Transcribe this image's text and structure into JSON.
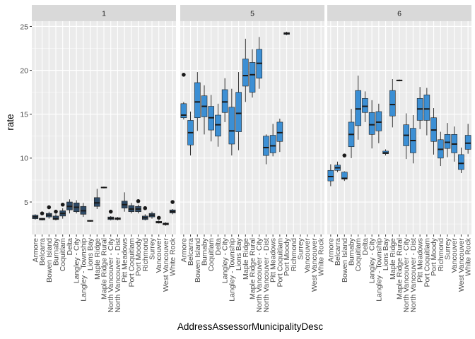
{
  "chart_data": {
    "type": "boxplot",
    "facet_by": "strip",
    "xlabel": "AddressAssessorMunicipalityDesc",
    "ylabel": "rate",
    "ylim": [
      1.3,
      25.6
    ],
    "y_ticks": [
      5,
      10,
      15,
      20,
      25
    ],
    "grid": true,
    "colors": {
      "panel_bg": "#ebebeb",
      "grid_major": "#ffffff",
      "strip_bg": "#d9d9d9",
      "tick_color": "#333333",
      "outlier": "#1a1a1a",
      "median": "#1a1a1a",
      "whisker": "#1a1a1a",
      "box_border": "#1f1f1f"
    },
    "categories": [
      "Armore",
      "Belcarra",
      "Bowen Island",
      "Burnaby",
      "Coquitlam",
      "Delta",
      "Langley - City",
      "Langley - Township",
      "Lions Bay",
      "Maple Ridge",
      "Maple Ridge Rural",
      "North Vancouver - City",
      "North Vancouver - Dist",
      "Pitt Meadows",
      "Port Coquitlam",
      "Port Moody",
      "Richmond",
      "Surrey",
      "Vancouver",
      "West Vancouver",
      "White Rock"
    ],
    "panels": [
      {
        "strip": "1",
        "box_fill": "#2e4a66",
        "boxes": [
          {
            "x": "Armore",
            "min": 3.0,
            "q1": 3.1,
            "median": 3.3,
            "q3": 3.5,
            "max": 3.6,
            "outliers": []
          },
          {
            "x": "Belcarra",
            "min": 2.9,
            "q1": 2.95,
            "median": 3.05,
            "q3": 3.15,
            "max": 3.2,
            "outliers": [
              3.7
            ]
          },
          {
            "x": "Bowen Island",
            "min": 3.1,
            "q1": 3.3,
            "median": 3.5,
            "q3": 3.7,
            "max": 3.9,
            "outliers": [
              4.4
            ]
          },
          {
            "x": "Burnaby",
            "min": 2.9,
            "q1": 3.0,
            "median": 3.1,
            "q3": 3.4,
            "max": 3.6,
            "outliers": [
              3.9
            ]
          },
          {
            "x": "Coquitlam",
            "min": 3.1,
            "q1": 3.4,
            "median": 3.7,
            "q3": 4.0,
            "max": 4.3,
            "outliers": [
              4.7
            ]
          },
          {
            "x": "Delta",
            "min": 3.7,
            "q1": 4.1,
            "median": 4.5,
            "q3": 5.0,
            "max": 5.3,
            "outliers": []
          },
          {
            "x": "Langley - City",
            "min": 3.7,
            "q1": 3.9,
            "median": 4.4,
            "q3": 4.9,
            "max": 5.2,
            "outliers": []
          },
          {
            "x": "Langley - Township",
            "min": 3.3,
            "q1": 3.6,
            "median": 4.0,
            "q3": 4.5,
            "max": 4.9,
            "outliers": []
          },
          {
            "x": "Lions Bay",
            "min": 2.75,
            "q1": 2.8,
            "median": 2.85,
            "q3": 2.9,
            "max": 2.95,
            "outliers": []
          },
          {
            "x": "Maple Ridge",
            "min": 4.2,
            "q1": 4.5,
            "median": 4.9,
            "q3": 5.5,
            "max": 6.5,
            "outliers": []
          },
          {
            "x": "Maple Ridge Rural",
            "min": 6.55,
            "q1": 6.6,
            "median": 6.65,
            "q3": 6.7,
            "max": 6.75,
            "outliers": []
          },
          {
            "x": "North Vancouver - City",
            "min": 2.9,
            "q1": 3.0,
            "median": 3.15,
            "q3": 3.3,
            "max": 3.4,
            "outliers": [
              3.9
            ]
          },
          {
            "x": "North Vancouver - Dist",
            "min": 2.9,
            "q1": 3.0,
            "median": 3.1,
            "q3": 3.2,
            "max": 3.3,
            "outliers": []
          },
          {
            "x": "Pitt Meadows",
            "min": 3.9,
            "q1": 4.3,
            "median": 4.7,
            "q3": 5.1,
            "max": 6.1,
            "outliers": []
          },
          {
            "x": "Port Coquitlam",
            "min": 3.7,
            "q1": 3.9,
            "median": 4.2,
            "q3": 4.6,
            "max": 4.9,
            "outliers": []
          },
          {
            "x": "Port Moody",
            "min": 3.7,
            "q1": 3.9,
            "median": 4.2,
            "q3": 4.5,
            "max": 4.7,
            "outliers": [
              5.1
            ]
          },
          {
            "x": "Richmond",
            "min": 2.9,
            "q1": 3.0,
            "median": 3.2,
            "q3": 3.4,
            "max": 3.6,
            "outliers": [
              4.3
            ]
          },
          {
            "x": "Surrey",
            "min": 3.1,
            "q1": 3.3,
            "median": 3.5,
            "q3": 3.7,
            "max": 3.9,
            "outliers": []
          },
          {
            "x": "Vancouver",
            "min": 2.55,
            "q1": 2.6,
            "median": 2.7,
            "q3": 2.8,
            "max": 2.9,
            "outliers": [
              3.2
            ]
          },
          {
            "x": "West Vancouver",
            "min": 2.3,
            "q1": 2.4,
            "median": 2.5,
            "q3": 2.6,
            "max": 2.7,
            "outliers": []
          },
          {
            "x": "White Rock",
            "min": 3.6,
            "q1": 3.75,
            "median": 3.9,
            "q3": 4.1,
            "max": 4.2,
            "outliers": [
              5.0
            ]
          }
        ]
      },
      {
        "strip": "5",
        "box_fill": "#3c8fd4",
        "boxes": [
          {
            "x": "Armore",
            "min": 14.4,
            "q1": 14.6,
            "median": 14.9,
            "q3": 16.2,
            "max": 16.4,
            "outliers": [
              19.5
            ]
          },
          {
            "x": "Belcarra",
            "min": 10.3,
            "q1": 11.5,
            "median": 12.9,
            "q3": 14.3,
            "max": 15.3,
            "outliers": []
          },
          {
            "x": "Bowen Island",
            "min": 13.1,
            "q1": 14.6,
            "median": 16.4,
            "q3": 18.6,
            "max": 19.8,
            "outliers": []
          },
          {
            "x": "Burnaby",
            "min": 12.7,
            "q1": 14.7,
            "median": 15.9,
            "q3": 17.1,
            "max": 18.3,
            "outliers": []
          },
          {
            "x": "Coquitlam",
            "min": 11.9,
            "q1": 13.2,
            "median": 14.6,
            "q3": 15.9,
            "max": 17.2,
            "outliers": []
          },
          {
            "x": "Delta",
            "min": 11.3,
            "q1": 12.5,
            "median": 13.8,
            "q3": 14.9,
            "max": 16.2,
            "outliers": []
          },
          {
            "x": "Langley - City",
            "min": 14.1,
            "q1": 15.2,
            "median": 16.4,
            "q3": 17.8,
            "max": 19.1,
            "outliers": []
          },
          {
            "x": "Langley - Township",
            "min": 10.3,
            "q1": 11.6,
            "median": 13.1,
            "q3": 15.8,
            "max": 17.9,
            "outliers": []
          },
          {
            "x": "Lions Bay",
            "min": 10.9,
            "q1": 13.0,
            "median": 15.1,
            "q3": 17.5,
            "max": 19.8,
            "outliers": []
          },
          {
            "x": "Maple Ridge",
            "min": 16.4,
            "q1": 18.2,
            "median": 19.4,
            "q3": 21.3,
            "max": 23.6,
            "outliers": []
          },
          {
            "x": "Maple Ridge Rural",
            "min": 16.9,
            "q1": 17.5,
            "median": 19.5,
            "q3": 20.9,
            "max": 22.4,
            "outliers": []
          },
          {
            "x": "North Vancouver - City",
            "min": 17.9,
            "q1": 19.1,
            "median": 20.8,
            "q3": 22.4,
            "max": 23.8,
            "outliers": []
          },
          {
            "x": "North Vancouver - Dist",
            "min": 9.3,
            "q1": 10.3,
            "median": 11.2,
            "q3": 12.5,
            "max": 12.7,
            "outliers": []
          },
          {
            "x": "Pitt Meadows",
            "min": 10.2,
            "q1": 10.6,
            "median": 11.4,
            "q3": 12.6,
            "max": 13.9,
            "outliers": []
          },
          {
            "x": "Port Coquitlam",
            "min": 10.7,
            "q1": 11.9,
            "median": 12.9,
            "q3": 14.1,
            "max": 14.5,
            "outliers": []
          },
          {
            "x": "Port Moody",
            "min": 24.0,
            "q1": 24.1,
            "median": 24.2,
            "q3": 24.3,
            "max": 24.4,
            "outliers": []
          }
        ]
      },
      {
        "strip": "6",
        "box_fill": "#3c8fd4",
        "boxes": [
          {
            "x": "Armore",
            "min": 6.8,
            "q1": 7.4,
            "median": 7.9,
            "q3": 8.6,
            "max": 9.3,
            "outliers": []
          },
          {
            "x": "Belcarra",
            "min": 8.4,
            "q1": 8.6,
            "median": 8.9,
            "q3": 9.2,
            "max": 9.6,
            "outliers": []
          },
          {
            "x": "Bowen Island",
            "min": 7.4,
            "q1": 7.6,
            "median": 7.7,
            "q3": 8.4,
            "max": 8.5,
            "outliers": [
              10.3
            ]
          },
          {
            "x": "Burnaby",
            "min": 10.0,
            "q1": 11.3,
            "median": 12.7,
            "q3": 14.1,
            "max": 15.6,
            "outliers": []
          },
          {
            "x": "Coquitlam",
            "min": 12.1,
            "q1": 13.7,
            "median": 15.6,
            "q3": 17.7,
            "max": 19.4,
            "outliers": []
          },
          {
            "x": "Delta",
            "min": 14.1,
            "q1": 15.2,
            "median": 15.9,
            "q3": 16.8,
            "max": 17.6,
            "outliers": []
          },
          {
            "x": "Langley - City",
            "min": 11.1,
            "q1": 12.7,
            "median": 13.8,
            "q3": 15.2,
            "max": 16.6,
            "outliers": []
          },
          {
            "x": "Langley - Township",
            "min": 11.7,
            "q1": 13.1,
            "median": 14.1,
            "q3": 15.3,
            "max": 16.2,
            "outliers": []
          },
          {
            "x": "Lions Bay",
            "min": 10.3,
            "q1": 10.5,
            "median": 10.6,
            "q3": 10.8,
            "max": 11.0,
            "outliers": []
          },
          {
            "x": "Maple Ridge",
            "min": 13.5,
            "q1": 14.8,
            "median": 16.1,
            "q3": 17.7,
            "max": 19.0,
            "outliers": []
          },
          {
            "x": "Maple Ridge Rural",
            "min": 18.75,
            "q1": 18.8,
            "median": 18.85,
            "q3": 18.9,
            "max": 18.95,
            "outliers": []
          },
          {
            "x": "North Vancouver - City",
            "min": 9.9,
            "q1": 11.4,
            "median": 12.6,
            "q3": 13.8,
            "max": 15.1,
            "outliers": []
          },
          {
            "x": "North Vancouver - Dist",
            "min": 9.4,
            "q1": 10.6,
            "median": 12.0,
            "q3": 13.4,
            "max": 14.9,
            "outliers": []
          },
          {
            "x": "Pitt Meadows",
            "min": 13.3,
            "q1": 14.3,
            "median": 15.6,
            "q3": 16.8,
            "max": 18.1,
            "outliers": []
          },
          {
            "x": "Port Coquitlam",
            "min": 12.6,
            "q1": 14.3,
            "median": 15.6,
            "q3": 17.2,
            "max": 18.0,
            "outliers": []
          },
          {
            "x": "Port Moody",
            "min": 10.4,
            "q1": 11.9,
            "median": 13.2,
            "q3": 14.6,
            "max": 15.7,
            "outliers": []
          },
          {
            "x": "Richmond",
            "min": 9.1,
            "q1": 10.0,
            "median": 11.0,
            "q3": 12.1,
            "max": 13.0,
            "outliers": []
          },
          {
            "x": "Surrey",
            "min": 10.1,
            "q1": 11.1,
            "median": 11.8,
            "q3": 12.7,
            "max": 14.0,
            "outliers": []
          },
          {
            "x": "Vancouver",
            "min": 9.6,
            "q1": 10.6,
            "median": 11.6,
            "q3": 12.7,
            "max": 13.6,
            "outliers": []
          },
          {
            "x": "West Vancouver",
            "min": 8.3,
            "q1": 8.7,
            "median": 9.4,
            "q3": 10.4,
            "max": 11.2,
            "outliers": []
          },
          {
            "x": "White Rock",
            "min": 10.5,
            "q1": 11.0,
            "median": 11.7,
            "q3": 12.6,
            "max": 13.9,
            "outliers": []
          }
        ]
      }
    ]
  }
}
